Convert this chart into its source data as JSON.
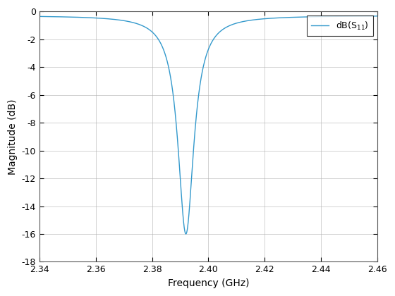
{
  "xlabel": "Frequency (GHz)",
  "ylabel": "Magnitude (dB)",
  "legend_label": "dB(S_{11})",
  "line_color": "#3399CC",
  "xlim": [
    2.34,
    2.46
  ],
  "ylim": [
    -18,
    0
  ],
  "xticks": [
    2.34,
    2.36,
    2.38,
    2.4,
    2.42,
    2.44,
    2.46
  ],
  "yticks": [
    0,
    -2,
    -4,
    -6,
    -8,
    -10,
    -12,
    -14,
    -16,
    -18
  ],
  "f0": 2.392,
  "depth": -16.0,
  "baseline": -0.3,
  "Q": 350,
  "f_start": 2.34,
  "f_end": 2.46,
  "num_points": 5000,
  "background_color": "#ffffff",
  "grid_color": "#b0b0b0",
  "figsize": [
    5.6,
    4.2
  ],
  "dpi": 100
}
